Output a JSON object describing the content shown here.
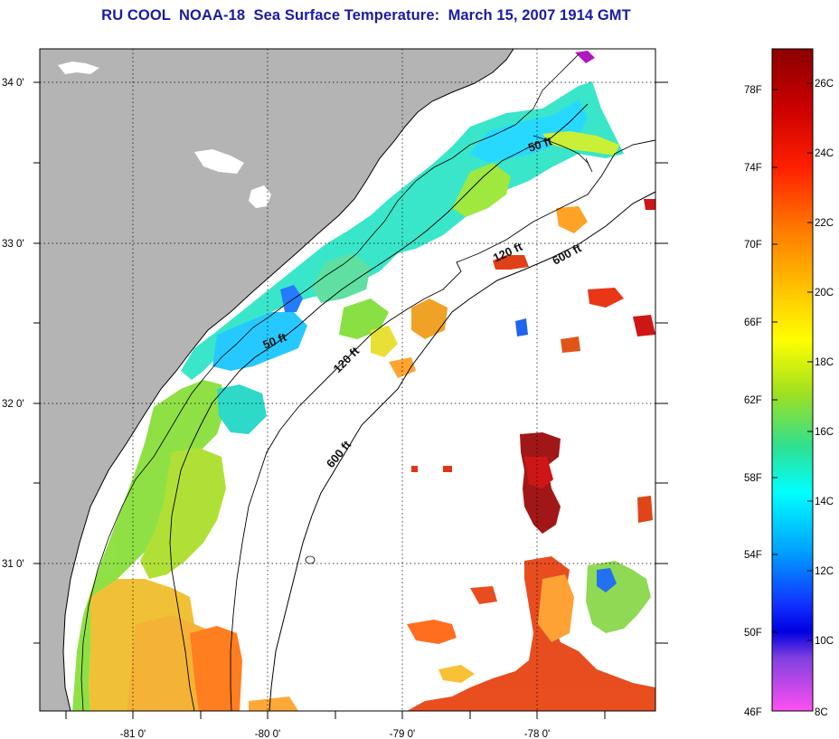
{
  "title": "RU COOL  NOAA-18  Sea Surface Temperature:  March 15, 2007 1914 GMT",
  "map": {
    "lat_labels": [
      "34 0'",
      "33 0'",
      "32 0'",
      "31 0'"
    ],
    "lon_labels": [
      "-81 0'",
      "-80 0'",
      "-79 0'",
      "-78 0'"
    ],
    "contour_labels": [
      "50 ft",
      "50 ft",
      "120 ft",
      "120 ft",
      "600 ft",
      "600 ft"
    ],
    "colors": {
      "land": "#b4b4b4",
      "ocean_no_data": "#ffffff",
      "coast": "#000000"
    }
  },
  "colorbar": {
    "fahrenheit_labels": [
      "78F",
      "74F",
      "70F",
      "66F",
      "62F",
      "58F",
      "54F",
      "50F",
      "46F"
    ],
    "celsius_labels": [
      "26C",
      "24C",
      "22C",
      "20C",
      "18C",
      "16C",
      "14C",
      "12C",
      "10C",
      "8C"
    ],
    "gradient": [
      "#8b0000",
      "#e00000",
      "#ff6000",
      "#ffa000",
      "#ffff00",
      "#90e030",
      "#20e0a0",
      "#00ffff",
      "#00a0ff",
      "#0020ff",
      "#8040ff",
      "#ff40ff"
    ]
  }
}
